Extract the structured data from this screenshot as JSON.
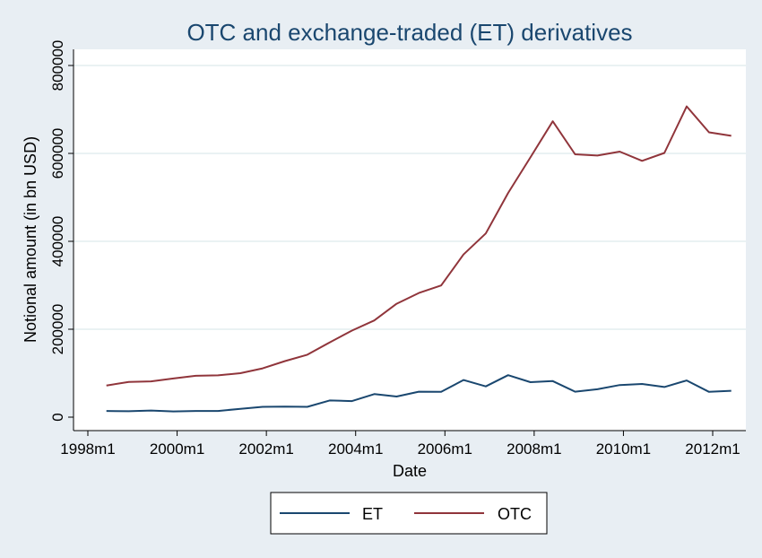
{
  "chart_data": {
    "type": "line",
    "title": "OTC and exchange-traded (ET) derivatives",
    "xlabel": "Date",
    "ylabel": "Notional amount (in bn USD)",
    "x_ticks": [
      "1998m1",
      "2000m1",
      "2002m1",
      "2004m1",
      "2006m1",
      "2008m1",
      "2010m1",
      "2012m1"
    ],
    "y_ticks": [
      "0",
      "200000",
      "400000",
      "600000",
      "800000"
    ],
    "ylim": [
      0,
      800000
    ],
    "xlim": [
      "1998m1",
      "2012m7"
    ],
    "grid": "horizontal",
    "legend_position": "bottom",
    "x": [
      "1998m6",
      "1998m12",
      "1999m6",
      "1999m12",
      "2000m6",
      "2000m12",
      "2001m6",
      "2001m12",
      "2002m6",
      "2002m12",
      "2003m6",
      "2003m12",
      "2004m6",
      "2004m12",
      "2005m6",
      "2005m12",
      "2006m6",
      "2006m12",
      "2007m6",
      "2007m12",
      "2008m6",
      "2008m12",
      "2009m6",
      "2009m12",
      "2010m6",
      "2010m12",
      "2011m6",
      "2011m12",
      "2012m6"
    ],
    "series": [
      {
        "name": "ET",
        "color": "#1a476f",
        "values": [
          14000,
          13500,
          15000,
          13000,
          14000,
          14000,
          19000,
          23500,
          24000,
          23500,
          38000,
          36500,
          52500,
          47000,
          58000,
          57500,
          84500,
          70000,
          95500,
          79500,
          82000,
          58000,
          63500,
          73000,
          75500,
          68500,
          83500,
          57500,
          60000
        ]
      },
      {
        "name": "OTC",
        "color": "#90353b",
        "values": [
          72000,
          80000,
          81500,
          88000,
          94000,
          95000,
          100000,
          111000,
          127500,
          142000,
          170000,
          197000,
          220000,
          258000,
          282500,
          299500,
          370000,
          418000,
          510000,
          591000,
          673000,
          598000,
          595000,
          604000,
          583000,
          601000,
          707000,
          648000,
          640000
        ]
      }
    ]
  }
}
